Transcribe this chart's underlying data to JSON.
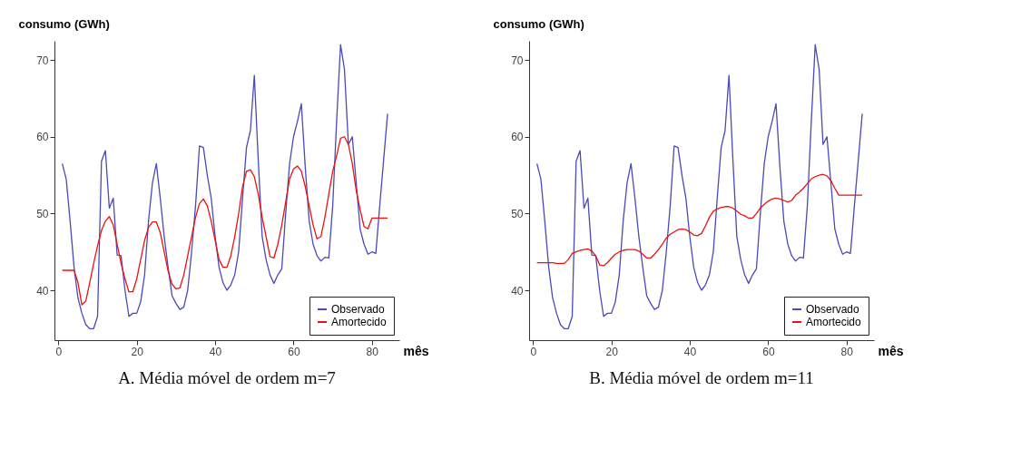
{
  "chart_data": [
    {
      "type": "line",
      "title": "A. Média móvel de ordem m=7",
      "xlabel": "mês",
      "ylabel": "consumo (GWh)",
      "xlim": [
        -1,
        87
      ],
      "ylim": [
        33.5,
        72.5
      ],
      "xticks": [
        0,
        20,
        40,
        60,
        80
      ],
      "yticks": [
        40,
        50,
        60,
        70
      ],
      "grid": false,
      "legend": "bottom right",
      "x": [
        1,
        2,
        3,
        4,
        5,
        6,
        7,
        8,
        9,
        10,
        11,
        12,
        13,
        14,
        15,
        16,
        17,
        18,
        19,
        20,
        21,
        22,
        23,
        24,
        25,
        26,
        27,
        28,
        29,
        30,
        31,
        32,
        33,
        34,
        35,
        36,
        37,
        38,
        39,
        40,
        41,
        42,
        43,
        44,
        45,
        46,
        47,
        48,
        49,
        50,
        51,
        52,
        53,
        54,
        55,
        56,
        57,
        58,
        59,
        60,
        61,
        62,
        63,
        64,
        65,
        66,
        67,
        68,
        69,
        70,
        71,
        72,
        73,
        74,
        75,
        76,
        77,
        78,
        79,
        80,
        81,
        82,
        83,
        84
      ],
      "series": [
        {
          "name": "Observado",
          "color": "#4a4ab8",
          "values": [
            56.5,
            54.5,
            49,
            43,
            39,
            37,
            35.5,
            35,
            35,
            36.6,
            56.8,
            58.2,
            50.7,
            52,
            44.6,
            44.5,
            40,
            36.6,
            37,
            37,
            38.5,
            42,
            49,
            54,
            56.5,
            52,
            47,
            43,
            39.3,
            38.3,
            37.5,
            37.8,
            40,
            45,
            51,
            58.8,
            58.6,
            55,
            52,
            47,
            43,
            41,
            40,
            40.7,
            42,
            45,
            52,
            58.6,
            60.8,
            68,
            57,
            47,
            44,
            42,
            40.9,
            42,
            42.8,
            50,
            56.5,
            60,
            62,
            64.3,
            56,
            49,
            46,
            44.5,
            43.8,
            44.3,
            44.2,
            51,
            62,
            72,
            68.8,
            59,
            60,
            54,
            48,
            46,
            44.7,
            45,
            44.8,
            51,
            57,
            63
          ]
        },
        {
          "name": "Amortecido",
          "color": "#ee1111",
          "values": [
            42.6,
            42.6,
            42.6,
            42.6,
            41,
            38.1,
            38.6,
            41,
            43.5,
            45.8,
            47.8,
            49,
            49.6,
            48.5,
            46,
            43.5,
            41.5,
            39.8,
            39.8,
            41.5,
            44,
            46.5,
            48.2,
            48.9,
            48.9,
            47.5,
            45,
            42.5,
            40.8,
            40.2,
            40.3,
            42,
            44.5,
            47,
            49.5,
            51.3,
            51.9,
            51,
            49,
            46.5,
            44,
            43,
            43,
            44.5,
            47,
            50,
            53.5,
            55.5,
            55.7,
            54.8,
            52.5,
            49.5,
            47,
            44.4,
            44.2,
            46,
            48.5,
            51.5,
            54.5,
            55.8,
            56.2,
            55.5,
            53.5,
            51,
            48.5,
            46.7,
            47,
            49.5,
            52.5,
            55.5,
            57.5,
            59.8,
            60,
            59,
            56.5,
            53,
            50.5,
            48.3,
            48,
            49.4,
            49.4,
            49.4,
            49.4,
            49.4
          ]
        }
      ]
    },
    {
      "type": "line",
      "title": "B. Média móvel de ordem m=11",
      "xlabel": "mês",
      "ylabel": "consumo (GWh)",
      "xlim": [
        -1,
        87
      ],
      "ylim": [
        33.5,
        72.5
      ],
      "xticks": [
        0,
        20,
        40,
        60,
        80
      ],
      "yticks": [
        40,
        50,
        60,
        70
      ],
      "grid": false,
      "legend": "bottom right",
      "x": [
        1,
        2,
        3,
        4,
        5,
        6,
        7,
        8,
        9,
        10,
        11,
        12,
        13,
        14,
        15,
        16,
        17,
        18,
        19,
        20,
        21,
        22,
        23,
        24,
        25,
        26,
        27,
        28,
        29,
        30,
        31,
        32,
        33,
        34,
        35,
        36,
        37,
        38,
        39,
        40,
        41,
        42,
        43,
        44,
        45,
        46,
        47,
        48,
        49,
        50,
        51,
        52,
        53,
        54,
        55,
        56,
        57,
        58,
        59,
        60,
        61,
        62,
        63,
        64,
        65,
        66,
        67,
        68,
        69,
        70,
        71,
        72,
        73,
        74,
        75,
        76,
        77,
        78,
        79,
        80,
        81,
        82,
        83,
        84
      ],
      "series": [
        {
          "name": "Observado",
          "color": "#4a4ab8",
          "values": [
            56.5,
            54.5,
            49,
            43,
            39,
            37,
            35.5,
            35,
            35,
            36.6,
            56.8,
            58.2,
            50.7,
            52,
            44.6,
            44.5,
            40,
            36.6,
            37,
            37,
            38.5,
            42,
            49,
            54,
            56.5,
            52,
            47,
            43,
            39.3,
            38.3,
            37.5,
            37.8,
            40,
            45,
            51,
            58.8,
            58.6,
            55,
            52,
            47,
            43,
            41,
            40,
            40.7,
            42,
            45,
            52,
            58.6,
            60.8,
            68,
            57,
            47,
            44,
            42,
            40.9,
            42,
            42.8,
            50,
            56.5,
            60,
            62,
            64.3,
            56,
            49,
            46,
            44.5,
            43.8,
            44.3,
            44.2,
            51,
            62,
            72,
            68.8,
            59,
            60,
            54,
            48,
            46,
            44.7,
            45,
            44.8,
            51,
            57,
            63
          ]
        },
        {
          "name": "Amortecido",
          "color": "#ee1111",
          "values": [
            43.6,
            43.6,
            43.6,
            43.6,
            43.6,
            43.5,
            43.5,
            43.5,
            44,
            44.8,
            45,
            45.2,
            45.3,
            45.4,
            45.1,
            44.5,
            43.3,
            43.2,
            43.6,
            44.2,
            44.7,
            45,
            45.2,
            45.3,
            45.3,
            45.3,
            45.1,
            44.7,
            44.2,
            44.2,
            44.7,
            45.3,
            46,
            46.8,
            47.3,
            47.6,
            47.9,
            48,
            47.9,
            47.6,
            47.2,
            47.1,
            47.4,
            48.4,
            49.5,
            50.3,
            50.6,
            50.8,
            50.9,
            50.9,
            50.7,
            50.3,
            49.9,
            49.7,
            49.4,
            49.4,
            50,
            50.7,
            51.2,
            51.6,
            51.9,
            52,
            51.9,
            51.7,
            51.5,
            51.7,
            52.4,
            52.8,
            53.3,
            53.9,
            54.5,
            54.8,
            55,
            55.1,
            54.9,
            54.3,
            53.3,
            52.4,
            52.4,
            52.4,
            52.4,
            52.4,
            52.4,
            52.4
          ]
        }
      ]
    }
  ]
}
